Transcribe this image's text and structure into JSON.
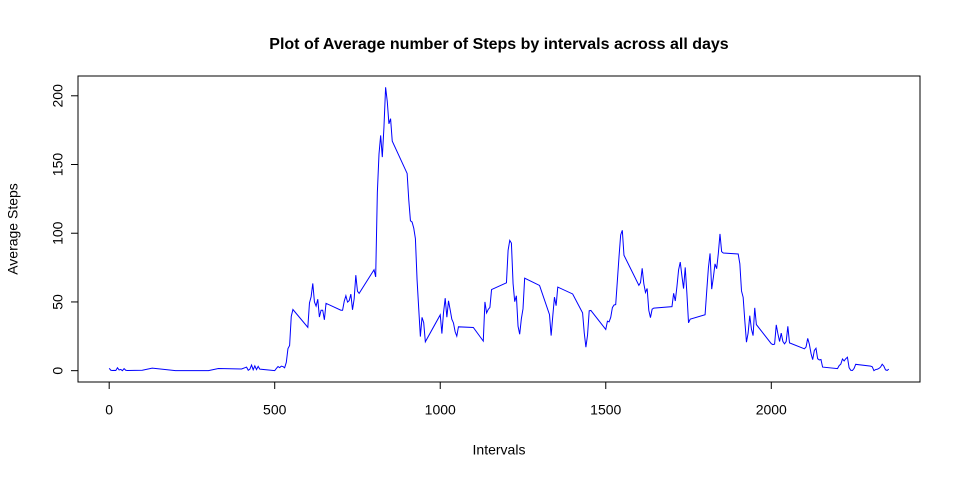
{
  "chart_data": {
    "type": "line",
    "title": "Plot of Average number of Steps by intervals across all days",
    "xlabel": "Intervals",
    "ylabel": "Average Steps",
    "x": [
      0,
      5,
      10,
      15,
      20,
      25,
      30,
      35,
      40,
      45,
      50,
      55,
      100,
      130,
      200,
      230,
      300,
      330,
      400,
      415,
      420,
      425,
      430,
      435,
      440,
      445,
      450,
      455,
      500,
      505,
      510,
      515,
      520,
      525,
      530,
      535,
      540,
      545,
      550,
      555,
      600,
      605,
      610,
      615,
      620,
      625,
      630,
      635,
      640,
      645,
      650,
      655,
      700,
      705,
      710,
      715,
      720,
      725,
      730,
      735,
      740,
      745,
      750,
      755,
      800,
      805,
      810,
      815,
      820,
      825,
      830,
      835,
      840,
      845,
      850,
      855,
      900,
      905,
      910,
      915,
      920,
      925,
      930,
      935,
      940,
      945,
      950,
      955,
      1000,
      1005,
      1010,
      1015,
      1020,
      1025,
      1030,
      1035,
      1040,
      1045,
      1050,
      1055,
      1100,
      1130,
      1135,
      1140,
      1145,
      1150,
      1155,
      1200,
      1205,
      1210,
      1215,
      1220,
      1225,
      1230,
      1235,
      1240,
      1245,
      1250,
      1255,
      1300,
      1330,
      1335,
      1340,
      1345,
      1350,
      1355,
      1400,
      1430,
      1435,
      1440,
      1445,
      1450,
      1455,
      1500,
      1505,
      1510,
      1515,
      1520,
      1525,
      1530,
      1535,
      1540,
      1545,
      1550,
      1555,
      1600,
      1605,
      1610,
      1615,
      1620,
      1625,
      1630,
      1635,
      1640,
      1645,
      1700,
      1705,
      1710,
      1715,
      1720,
      1725,
      1730,
      1735,
      1740,
      1745,
      1750,
      1755,
      1800,
      1805,
      1810,
      1815,
      1820,
      1825,
      1830,
      1835,
      1840,
      1845,
      1850,
      1855,
      1900,
      1905,
      1910,
      1915,
      1920,
      1925,
      1930,
      1935,
      1940,
      1945,
      1950,
      1955,
      2000,
      2005,
      2010,
      2015,
      2020,
      2025,
      2030,
      2035,
      2040,
      2045,
      2050,
      2055,
      2100,
      2105,
      2110,
      2115,
      2120,
      2125,
      2130,
      2135,
      2140,
      2145,
      2150,
      2155,
      2200,
      2205,
      2210,
      2215,
      2220,
      2225,
      2230,
      2235,
      2240,
      2245,
      2250,
      2255,
      2300,
      2305,
      2310,
      2315,
      2320,
      2325,
      2330,
      2335,
      2340,
      2345,
      2350,
      2355
    ],
    "series": [
      {
        "name": "Average Steps",
        "color": "#0000ff",
        "values": [
          1.7,
          0.3,
          0.1,
          0.2,
          0.1,
          2.1,
          0.5,
          0.9,
          0,
          1.5,
          0.3,
          0.1,
          0.3,
          1.8,
          0,
          0,
          0,
          1.6,
          1.2,
          2.6,
          0.3,
          1.1,
          4.1,
          0.7,
          3.5,
          0.8,
          3.1,
          1.1,
          0,
          1.6,
          3,
          2.2,
          3.3,
          3,
          2.1,
          6,
          16,
          18.3,
          39.5,
          44.5,
          31.5,
          49.3,
          53.8,
          63.5,
          50,
          47,
          52,
          39,
          44,
          44,
          37,
          49,
          44,
          44,
          50.5,
          54.5,
          49.9,
          51,
          55.7,
          44.3,
          52.3,
          69.5,
          57.8,
          56.2,
          73.4,
          68.2,
          129.4,
          157.5,
          171.2,
          155.4,
          177.3,
          206.2,
          195.9,
          179.6,
          183.4,
          167,
          143.5,
          124,
          109.1,
          108.1,
          103.7,
          96,
          66.2,
          45.2,
          24.8,
          38.8,
          35,
          21,
          40.6,
          27,
          42.4,
          52.7,
          38.9,
          50.8,
          44.3,
          37.4,
          34.7,
          28.3,
          25.1,
          31.9,
          31.4,
          21.5,
          50,
          42,
          44.6,
          46,
          59,
          63.9,
          87.6,
          94.8,
          92.8,
          63.4,
          50.2,
          54.5,
          32.4,
          26.5,
          37.7,
          45,
          67.3,
          62,
          40.8,
          25.5,
          39.9,
          53.5,
          47.3,
          60.8,
          55.8,
          42,
          27.5,
          17.1,
          26.1,
          43.6,
          43.8,
          30,
          36,
          35.5,
          38.8,
          45.9,
          47.8,
          48.1,
          65.3,
          82.9,
          98.7,
          102.1,
          84,
          62.1,
          64.1,
          74.5,
          63.2,
          56.9,
          59.8,
          43.9,
          38.6,
          44.7,
          45.5,
          46.6,
          56.3,
          50.7,
          61.2,
          73.4,
          79,
          68.9,
          59.7,
          75.1,
          56.5,
          34.8,
          37.5,
          40.7,
          58,
          74.7,
          85.3,
          59.3,
          67.8,
          77.7,
          74.2,
          85.3,
          99.5,
          86.6,
          85.6,
          84.9,
          77.8,
          58,
          53.4,
          36.3,
          20.7,
          27.4,
          40,
          30.2,
          25.5,
          45.7,
          33.5,
          19.6,
          19,
          19.3,
          33.3,
          26.8,
          21.2,
          27.3,
          21.3,
          19.5,
          21.3,
          32.3,
          20.2,
          15.9,
          17.2,
          23.5,
          19.2,
          12.5,
          8,
          14.7,
          16.3,
          8.7,
          7.8,
          8.1,
          2.6,
          1.5,
          3.7,
          4.8,
          8.5,
          7.1,
          8.7,
          9.8,
          2.2,
          0.3,
          0.1,
          1.6,
          4.6,
          3.3,
          2.8,
          0,
          0.8,
          1,
          1.6,
          2.6,
          4.7,
          3.3,
          0.6,
          0.2,
          1.1
        ]
      }
    ],
    "xlim": [
      -94.2,
      2449.2
    ],
    "xticks": [
      0,
      500,
      1000,
      1500,
      2000
    ],
    "ylim": [
      -8.25,
      214.4
    ],
    "yticks": [
      0,
      50,
      100,
      150,
      200
    ]
  }
}
